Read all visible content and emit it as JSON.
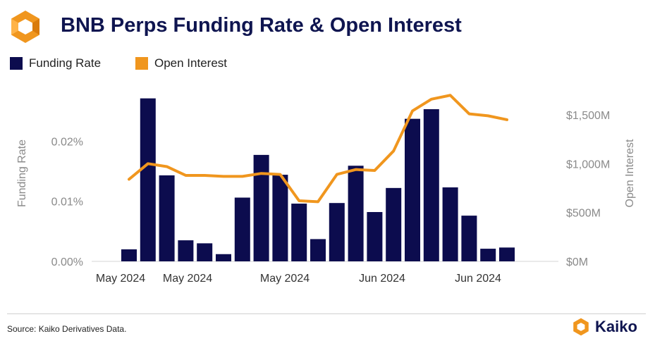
{
  "header": {
    "title": "BNB Perps Funding Rate & Open Interest"
  },
  "legend": [
    {
      "label": "Funding Rate",
      "color": "#0c0c4e"
    },
    {
      "label": "Open Interest",
      "color": "#f0961e"
    }
  ],
  "footer": {
    "source": "Source: Kaiko Derivatives Data.",
    "brand": "Kaiko"
  },
  "icons": [
    "kaiko-logo-icon",
    "kaiko-brand-icon"
  ],
  "chart_data": {
    "type": "bar+line",
    "title": "BNB Perps Funding Rate & Open Interest",
    "y_left": {
      "label": "Funding Rate",
      "ticks": [
        "0.00%",
        "0.01%",
        "0.02%"
      ],
      "tick_values": [
        0,
        0.01,
        0.02
      ],
      "range": [
        0,
        0.0294
      ]
    },
    "y_right": {
      "label": "Open Interest",
      "ticks": [
        "$0M",
        "$500M",
        "$1,000M",
        "$1,500M"
      ],
      "tick_values": [
        0,
        500,
        1000,
        1500
      ],
      "range": [
        0,
        1810
      ]
    },
    "x_ticks": [
      "May 2024",
      "May 2024",
      "May 2024",
      "Jun 2024",
      "Jun 2024"
    ],
    "series": [
      {
        "name": "Funding Rate",
        "type": "bar",
        "axis": "left",
        "color": "#0c0c4e",
        "values": [
          0.002,
          0.0271,
          0.0143,
          0.0035,
          0.003,
          0.0012,
          0.0106,
          0.0177,
          0.0144,
          0.0096,
          0.0037,
          0.0097,
          0.0159,
          0.0082,
          0.0122,
          0.0237,
          0.0253,
          0.0123,
          0.0076,
          0.0021,
          0.0023
        ]
      },
      {
        "name": "Open Interest",
        "type": "line",
        "axis": "right",
        "color": "#f0961e",
        "values": [
          840,
          1000,
          970,
          880,
          880,
          870,
          870,
          900,
          890,
          620,
          610,
          890,
          940,
          930,
          1130,
          1540,
          1660,
          1700,
          1510,
          1490,
          1450
        ]
      }
    ],
    "grid": false
  }
}
